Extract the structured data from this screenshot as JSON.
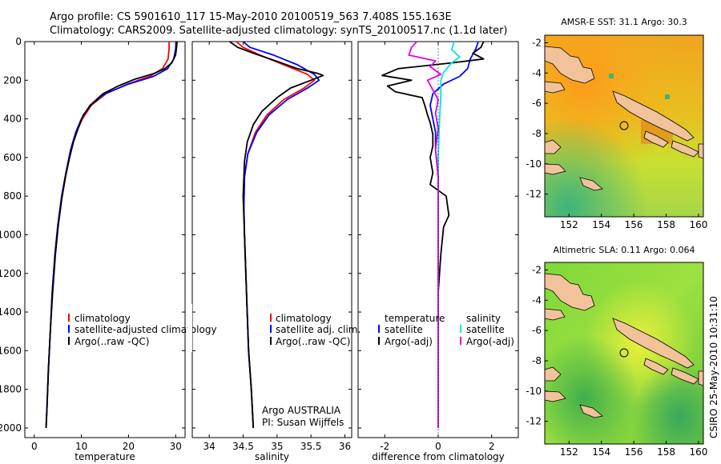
{
  "header": {
    "line1": "Argo profile: CS 5901610_117 15-May-2010 20100519_563 7.408S 155.163E",
    "line2": "Climatology: CARS2009. Satellite-adjusted climatology: synTS_20100517.nc (1.1d later)"
  },
  "side_label": "CSIRO 25-May-2010 10:31:10",
  "colors": {
    "climatology": "#ff0000",
    "satellite": "#0000ff",
    "argo": "#000000",
    "sal_satellite": "#00e5e5",
    "sal_argo": "#e600e6"
  },
  "chart_data": [
    {
      "id": "temperature",
      "type": "line",
      "xlabel": "temperature",
      "ylabel": "",
      "xlim": [
        -2,
        32
      ],
      "ylim": [
        2050,
        0
      ],
      "xticks": [
        0,
        10,
        20,
        30
      ],
      "xtick_labels": [
        "0",
        "10",
        "20",
        "30"
      ],
      "yticks": [
        0,
        200,
        400,
        600,
        800,
        1000,
        1200,
        1400,
        1600,
        1800,
        2000
      ],
      "ytick_labels": [
        "0",
        "200",
        "400",
        "600",
        "800",
        "1000",
        "1200",
        "1400",
        "1600",
        "1800",
        "2000"
      ],
      "legend": {
        "position": "lower-middle",
        "entries": [
          "climatology",
          "satellite-adjusted climatology",
          "Argo(..raw -QC)"
        ]
      },
      "series": [
        {
          "name": "climatology",
          "color": "#ff0000",
          "points": [
            [
              28.6,
              0
            ],
            [
              28.6,
              40
            ],
            [
              28.4,
              90
            ],
            [
              27.2,
              140
            ],
            [
              24.5,
              180
            ],
            [
              19.8,
              220
            ],
            [
              15.2,
              270
            ],
            [
              12.1,
              330
            ],
            [
              10.2,
              400
            ],
            [
              8.9,
              470
            ],
            [
              7.8,
              560
            ],
            [
              6.8,
              680
            ],
            [
              5.9,
              800
            ],
            [
              5.0,
              950
            ],
            [
              4.4,
              1100
            ],
            [
              3.8,
              1300
            ],
            [
              3.4,
              1500
            ],
            [
              3.0,
              1700
            ],
            [
              2.7,
              1900
            ],
            [
              2.5,
              2000
            ]
          ]
        },
        {
          "name": "satellite-adjusted climatology",
          "color": "#0000ff",
          "points": [
            [
              30.1,
              0
            ],
            [
              30.0,
              40
            ],
            [
              29.6,
              90
            ],
            [
              28.3,
              140
            ],
            [
              25.3,
              180
            ],
            [
              20.0,
              220
            ],
            [
              15.0,
              270
            ],
            [
              11.8,
              330
            ],
            [
              10.0,
              400
            ],
            [
              8.8,
              470
            ],
            [
              7.7,
              560
            ],
            [
              6.7,
              680
            ],
            [
              5.8,
              800
            ],
            [
              5.0,
              950
            ],
            [
              4.4,
              1100
            ],
            [
              3.8,
              1300
            ],
            [
              3.4,
              1500
            ],
            [
              3.0,
              1700
            ],
            [
              2.7,
              1900
            ],
            [
              2.5,
              2000
            ]
          ]
        },
        {
          "name": "Argo(..raw -QC)",
          "color": "#000000",
          "points": [
            [
              30.3,
              0
            ],
            [
              30.2,
              30
            ],
            [
              30.0,
              70
            ],
            [
              29.2,
              110
            ],
            [
              27.7,
              140
            ],
            [
              25.4,
              165
            ],
            [
              21.3,
              195
            ],
            [
              17.8,
              230
            ],
            [
              14.6,
              270
            ],
            [
              12.3,
              320
            ],
            [
              10.4,
              380
            ],
            [
              9.3,
              450
            ],
            [
              8.3,
              520
            ],
            [
              7.5,
              600
            ],
            [
              6.6,
              700
            ],
            [
              5.8,
              820
            ],
            [
              5.1,
              950
            ],
            [
              4.5,
              1100
            ],
            [
              3.9,
              1300
            ],
            [
              3.4,
              1500
            ],
            [
              3.0,
              1700
            ],
            [
              2.7,
              1900
            ],
            [
              2.5,
              2000
            ]
          ]
        }
      ]
    },
    {
      "id": "salinity",
      "type": "line",
      "xlabel": "salinity",
      "ylabel": "",
      "xlim": [
        33.75,
        36.1
      ],
      "ylim": [
        2050,
        0
      ],
      "xticks": [
        34,
        34.5,
        35,
        35.5,
        36
      ],
      "xtick_labels": [
        "34",
        "34.5",
        "35",
        "35.5",
        "36"
      ],
      "legend": {
        "position": "lower-right",
        "entries": [
          "climatology",
          "satellite adj. clim.",
          "Argo(..raw -QC)"
        ]
      },
      "annotation": [
        "Argo AUSTRALIA",
        "PI: Susan Wijffels"
      ],
      "series": [
        {
          "name": "climatology",
          "color": "#ff0000",
          "points": [
            [
              34.4,
              0
            ],
            [
              34.5,
              30
            ],
            [
              34.75,
              70
            ],
            [
              35.1,
              120
            ],
            [
              35.45,
              170
            ],
            [
              35.55,
              200
            ],
            [
              35.4,
              240
            ],
            [
              35.1,
              300
            ],
            [
              34.85,
              380
            ],
            [
              34.68,
              470
            ],
            [
              34.57,
              580
            ],
            [
              34.52,
              700
            ],
            [
              34.51,
              850
            ],
            [
              34.52,
              1000
            ],
            [
              34.55,
              1300
            ],
            [
              34.58,
              1600
            ],
            [
              34.62,
              1800
            ],
            [
              34.65,
              2000
            ]
          ]
        },
        {
          "name": "satellite adj. clim.",
          "color": "#0000ff",
          "points": [
            [
              34.5,
              0
            ],
            [
              34.6,
              30
            ],
            [
              34.95,
              70
            ],
            [
              35.3,
              120
            ],
            [
              35.55,
              170
            ],
            [
              35.62,
              200
            ],
            [
              35.45,
              240
            ],
            [
              35.15,
              300
            ],
            [
              34.88,
              380
            ],
            [
              34.7,
              470
            ],
            [
              34.57,
              580
            ],
            [
              34.52,
              700
            ],
            [
              34.51,
              850
            ],
            [
              34.52,
              1000
            ],
            [
              34.55,
              1300
            ],
            [
              34.58,
              1600
            ],
            [
              34.62,
              1800
            ],
            [
              34.65,
              2000
            ]
          ]
        },
        {
          "name": "Argo(..raw -QC)",
          "color": "#000000",
          "points": [
            [
              34.3,
              0
            ],
            [
              34.42,
              30
            ],
            [
              34.65,
              60
            ],
            [
              34.98,
              100
            ],
            [
              35.3,
              140
            ],
            [
              35.6,
              165
            ],
            [
              35.68,
              175
            ],
            [
              35.5,
              200
            ],
            [
              35.2,
              240
            ],
            [
              35.0,
              290
            ],
            [
              34.78,
              360
            ],
            [
              34.65,
              430
            ],
            [
              34.56,
              520
            ],
            [
              34.52,
              620
            ],
            [
              34.5,
              800
            ],
            [
              34.52,
              1000
            ],
            [
              34.55,
              1300
            ],
            [
              34.58,
              1600
            ],
            [
              34.62,
              1800
            ],
            [
              34.65,
              2000
            ]
          ]
        }
      ]
    },
    {
      "id": "difference",
      "type": "line",
      "xlabel": "difference from climatology",
      "ylabel": "",
      "xlim": [
        -3,
        3
      ],
      "ylim": [
        2050,
        0
      ],
      "xticks": [
        -2,
        0,
        2
      ],
      "xtick_labels": [
        "-2",
        "0",
        "2"
      ],
      "legend": {
        "position": "lower-middle",
        "headings": [
          "temperature",
          "salinity"
        ],
        "left_entries": [
          "satellite",
          "Argo(-adj)"
        ],
        "right_entries": [
          "satellite",
          "Argo(-adj)"
        ]
      },
      "series": [
        {
          "name": "temperature satellite",
          "color": "#0000ff",
          "points": [
            [
              1.5,
              0
            ],
            [
              1.4,
              40
            ],
            [
              1.2,
              90
            ],
            [
              1.1,
              140
            ],
            [
              0.8,
              180
            ],
            [
              0.2,
              220
            ],
            [
              -0.2,
              270
            ],
            [
              -0.3,
              330
            ],
            [
              -0.2,
              400
            ],
            [
              -0.1,
              470
            ],
            [
              -0.1,
              560
            ],
            [
              0,
              700
            ],
            [
              0,
              900
            ],
            [
              0,
              1200
            ],
            [
              0,
              1500
            ],
            [
              0,
              1800
            ],
            [
              0,
              2000
            ]
          ]
        },
        {
          "name": "temperature Argo(-adj)",
          "color": "#000000",
          "points": [
            [
              1.7,
              0
            ],
            [
              1.6,
              30
            ],
            [
              1.3,
              60
            ],
            [
              1.7,
              90
            ],
            [
              0.5,
              110
            ],
            [
              -1.5,
              140
            ],
            [
              -2.1,
              175
            ],
            [
              -1.0,
              200
            ],
            [
              -1.9,
              230
            ],
            [
              -1.6,
              260
            ],
            [
              -0.6,
              290
            ],
            [
              -0.5,
              330
            ],
            [
              -0.4,
              380
            ],
            [
              -0.3,
              420
            ],
            [
              -0.2,
              480
            ],
            [
              -0.2,
              540
            ],
            [
              -0.3,
              600
            ],
            [
              -0.2,
              680
            ],
            [
              -0.3,
              740
            ],
            [
              0.3,
              800
            ],
            [
              0.4,
              900
            ],
            [
              0.2,
              960
            ],
            [
              0.1,
              1100
            ],
            [
              0,
              1300
            ],
            [
              0,
              1600
            ],
            [
              0,
              1800
            ],
            [
              0,
              2000
            ]
          ]
        },
        {
          "name": "salinity satellite",
          "color": "#00e5e5",
          "points": [
            [
              0.6,
              0
            ],
            [
              0.5,
              40
            ],
            [
              0.8,
              80
            ],
            [
              0.5,
              110
            ],
            [
              0.2,
              160
            ],
            [
              0.1,
              200
            ],
            [
              0.1,
              280
            ],
            [
              0.05,
              400
            ],
            [
              0,
              600
            ],
            [
              0,
              1000
            ],
            [
              0,
              1400
            ],
            [
              0,
              1800
            ],
            [
              0,
              2000
            ]
          ]
        },
        {
          "name": "salinity Argo(-adj)",
          "color": "#e600e6",
          "points": [
            [
              -0.8,
              0
            ],
            [
              -1.0,
              30
            ],
            [
              -1.1,
              70
            ],
            [
              -0.1,
              100
            ],
            [
              -0.3,
              130
            ],
            [
              0.1,
              170
            ],
            [
              -0.4,
              200
            ],
            [
              -0.2,
              250
            ],
            [
              0.0,
              300
            ],
            [
              -0.1,
              370
            ],
            [
              0,
              450
            ],
            [
              -0.1,
              560
            ],
            [
              0,
              700
            ],
            [
              0,
              1000
            ],
            [
              0,
              1400
            ],
            [
              0,
              1800
            ],
            [
              0,
              2000
            ]
          ]
        }
      ]
    },
    {
      "id": "sst_map",
      "type": "heatmap",
      "title": "AMSR-E SST: 31.1  Argo: 30.3",
      "xlim": [
        150.5,
        160.3
      ],
      "ylim": [
        -13.5,
        -1.5
      ],
      "xticks": [
        152,
        154,
        156,
        158,
        160
      ],
      "xtick_labels": [
        "152",
        "154",
        "156",
        "158",
        "160"
      ],
      "yticks": [
        -2,
        -4,
        -6,
        -8,
        -10,
        -12
      ],
      "ytick_labels": [
        "-2",
        "-4",
        "-6",
        "-8",
        "-10",
        "-12"
      ],
      "marker": {
        "lon": 155.163,
        "lat": -7.408
      }
    },
    {
      "id": "sla_map",
      "type": "heatmap",
      "title": "Altimetric SLA: 0.11  Argo: 0.064",
      "xlim": [
        150.5,
        160.3
      ],
      "ylim": [
        -13.5,
        -1.5
      ],
      "xticks": [
        152,
        154,
        156,
        158,
        160
      ],
      "xtick_labels": [
        "152",
        "154",
        "156",
        "158",
        "160"
      ],
      "yticks": [
        -2,
        -4,
        -6,
        -8,
        -10,
        -12
      ],
      "ytick_labels": [
        "-2",
        "-4",
        "-6",
        "-8",
        "-10",
        "-12"
      ],
      "marker": {
        "lon": 155.163,
        "lat": -7.408
      }
    }
  ]
}
